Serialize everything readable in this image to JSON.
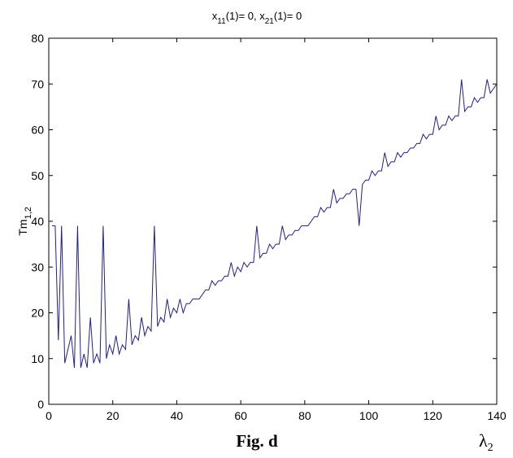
{
  "chart_data": {
    "type": "line",
    "title_parts": {
      "v1": "x",
      "s1": "11",
      "m1": "(1)= 0, ",
      "v2": "x",
      "s2": "21",
      "m2": "(1)= 0"
    },
    "ylabel_parts": {
      "base": "Tm",
      "sub": "1,2"
    },
    "xlabel_parts": {
      "base": "λ",
      "sub": "2"
    },
    "caption": "Fig. d",
    "xlim": [
      0,
      140
    ],
    "ylim": [
      0,
      80
    ],
    "xticks": [
      0,
      20,
      40,
      60,
      80,
      100,
      120,
      140
    ],
    "yticks": [
      0,
      10,
      20,
      30,
      40,
      50,
      60,
      70,
      80
    ],
    "grid": false,
    "line_color": "#1f1f8f",
    "series": [
      {
        "x": [
          1,
          2,
          3,
          4,
          5,
          6,
          7,
          8,
          9,
          10,
          11,
          12,
          13,
          14,
          15,
          16,
          17,
          18,
          19,
          20,
          21,
          22,
          23,
          24,
          25,
          26,
          27,
          28,
          29,
          30,
          31,
          32,
          33,
          34,
          35,
          36,
          37,
          38,
          39,
          40,
          41,
          42,
          43,
          44,
          45,
          46,
          47,
          48,
          49,
          50,
          51,
          52,
          53,
          54,
          55,
          56,
          57,
          58,
          59,
          60,
          61,
          62,
          63,
          64,
          65,
          66,
          67,
          68,
          69,
          70,
          71,
          72,
          73,
          74,
          75,
          76,
          77,
          78,
          79,
          80,
          81,
          82,
          83,
          84,
          85,
          86,
          87,
          88,
          89,
          90,
          91,
          92,
          93,
          94,
          95,
          96,
          97,
          98,
          99,
          100,
          101,
          102,
          103,
          104,
          105,
          106,
          107,
          108,
          109,
          110,
          111,
          112,
          113,
          114,
          115,
          116,
          117,
          118,
          119,
          120,
          121,
          122,
          123,
          124,
          125,
          126,
          127,
          128,
          129,
          130,
          131,
          132,
          133,
          134,
          135,
          136,
          137,
          138,
          139,
          140
        ],
        "y": [
          39,
          39,
          14,
          39,
          9,
          12,
          15,
          8,
          39,
          8,
          11,
          8,
          19,
          9,
          11,
          9,
          39,
          10,
          13,
          11,
          15,
          11,
          13,
          12,
          23,
          13,
          15,
          14,
          19,
          15,
          17,
          16,
          39,
          17,
          19,
          18,
          23,
          19,
          21,
          20,
          23,
          20,
          22,
          22,
          23,
          23,
          23,
          24,
          25,
          25,
          27,
          26,
          27,
          27,
          28,
          28,
          31,
          28,
          30,
          29,
          31,
          30,
          31,
          31,
          39,
          32,
          33,
          33,
          35,
          34,
          35,
          35,
          39,
          36,
          37,
          37,
          38,
          38,
          39,
          39,
          39,
          40,
          41,
          41,
          43,
          42,
          43,
          43,
          47,
          44,
          45,
          45,
          46,
          46,
          47,
          47,
          39,
          48,
          49,
          49,
          51,
          50,
          51,
          51,
          55,
          52,
          53,
          53,
          55,
          54,
          55,
          55,
          56,
          56,
          57,
          57,
          59,
          58,
          59,
          59,
          63,
          60,
          61,
          61,
          63,
          62,
          63,
          63,
          71,
          64,
          65,
          65,
          67,
          66,
          67,
          67,
          71,
          68,
          69,
          70
        ]
      }
    ]
  }
}
